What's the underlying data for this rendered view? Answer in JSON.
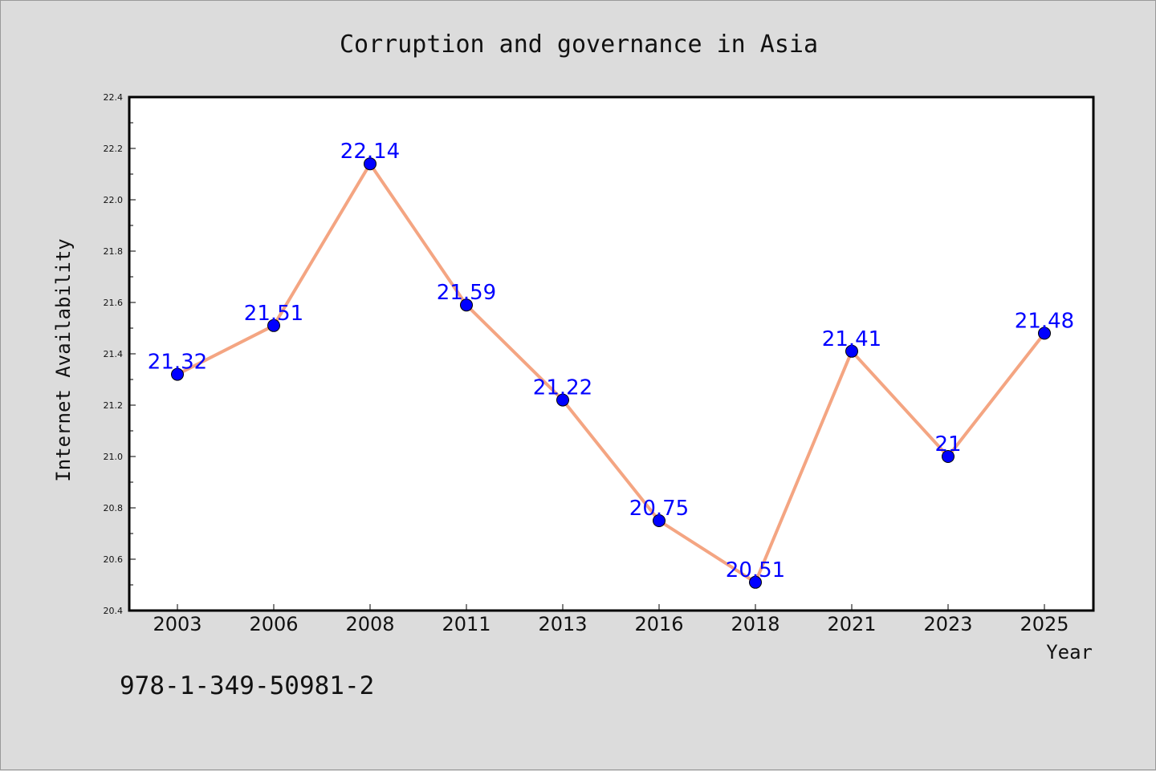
{
  "chart_data": {
    "type": "line",
    "title": "Corruption and governance in Asia",
    "xlabel": "Year",
    "ylabel": "Internet Availability",
    "categories": [
      "2003",
      "2006",
      "2008",
      "2011",
      "2013",
      "2016",
      "2018",
      "2021",
      "2023",
      "2025"
    ],
    "series": [
      {
        "values": [
          21.32,
          21.51,
          22.14,
          21.59,
          21.22,
          20.75,
          20.51,
          21.41,
          21,
          21.48
        ],
        "data_labels": [
          "21.32",
          "21.51",
          "22.14",
          "21.59",
          "21.22",
          "20.75",
          "20.51",
          "21.41",
          "21",
          "21.48"
        ],
        "line_color": "#f4a582",
        "marker_color": "#0000ff"
      }
    ],
    "ylim": [
      20.4,
      22.4
    ],
    "yticks": [
      "20.4",
      "20.6",
      "20.8",
      "21.0",
      "21.2",
      "21.4",
      "21.6",
      "21.8",
      "22.0",
      "22.2",
      "22.4"
    ],
    "grid": false,
    "legend": "none",
    "annotation": "978-1-349-50981-2"
  }
}
